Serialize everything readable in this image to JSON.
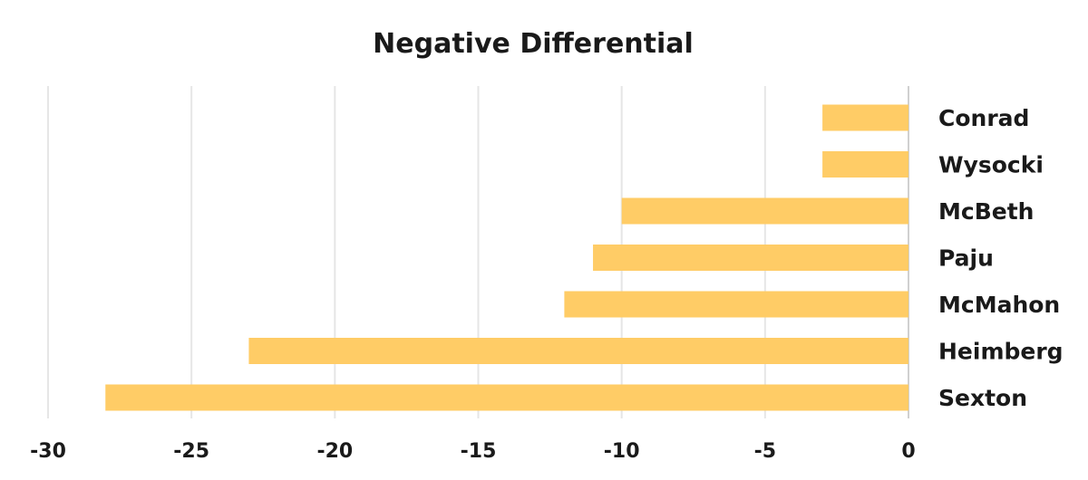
{
  "chart_data": {
    "type": "bar",
    "orientation": "horizontal",
    "title": "Negative Differential",
    "xlabel": "",
    "ylabel": "",
    "categories": [
      "Conrad",
      "Wysocki",
      "McBeth",
      "Paju",
      "McMahon",
      "Heimberg",
      "Sexton"
    ],
    "values": [
      -3,
      -3,
      -10,
      -11,
      -12,
      -23,
      -28
    ],
    "xlim": [
      -30,
      0
    ],
    "xticks": [
      -30,
      -25,
      -20,
      -15,
      -10,
      -5,
      0
    ],
    "xtick_labels": [
      "-30",
      "-25",
      "-20",
      "-15",
      "-10",
      "-5",
      "0"
    ],
    "category_axis_side": "right",
    "grid": true,
    "legend": "none",
    "bar_color": "#FFCC66"
  }
}
